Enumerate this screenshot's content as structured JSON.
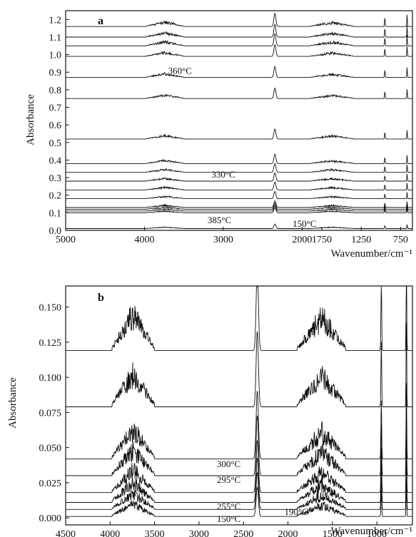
{
  "chart_data": [
    {
      "type": "line",
      "panel": "a",
      "ylabel": "Absorbance",
      "xlabel": "Wavenumber/cm⁻¹",
      "xlim": [
        5000,
        600
      ],
      "ylim": [
        0.0,
        1.25
      ],
      "x_ticks": [
        {
          "v": 5000,
          "label": "5000"
        },
        {
          "v": 4000,
          "label": "4000"
        },
        {
          "v": 3000,
          "label": "3000"
        },
        {
          "v": 2000,
          "label": "2000"
        },
        {
          "v": 1750,
          "label": "1750"
        },
        {
          "v": 1250,
          "label": "1250"
        },
        {
          "v": 750,
          "label": "750"
        }
      ],
      "y_ticks": [
        {
          "v": 0.0,
          "label": "0.0"
        },
        {
          "v": 0.1,
          "label": "0.1"
        },
        {
          "v": 0.2,
          "label": "0.2"
        },
        {
          "v": 0.3,
          "label": "0.3"
        },
        {
          "v": 0.4,
          "label": "0.4"
        },
        {
          "v": 0.5,
          "label": "0.5"
        },
        {
          "v": 0.6,
          "label": "0.6"
        },
        {
          "v": 0.7,
          "label": "0.7"
        },
        {
          "v": 0.8,
          "label": "0.8"
        },
        {
          "v": 0.9,
          "label": "0.9"
        },
        {
          "v": 1.0,
          "label": "1.0"
        },
        {
          "v": 1.1,
          "label": "1.1"
        },
        {
          "v": 1.2,
          "label": "1.2"
        }
      ],
      "baselines": [
        0.01,
        0.1,
        0.11,
        0.12,
        0.13,
        0.18,
        0.23,
        0.28,
        0.33,
        0.38,
        0.52,
        0.75,
        0.87,
        0.99,
        1.05,
        1.1,
        1.16
      ],
      "annotations": [
        {
          "text": "360°C",
          "x": 3700,
          "y": 0.89
        },
        {
          "text": "330°C",
          "x": 3150,
          "y": 0.3
        },
        {
          "text": "385°C",
          "x": 3200,
          "y": 0.04
        },
        {
          "text": "150°C",
          "x": 2120,
          "y": 0.02
        }
      ]
    },
    {
      "type": "line",
      "panel": "b",
      "ylabel": "Absorbance",
      "xlabel": "Wavenumber/cm⁻¹",
      "xlim": [
        4500,
        600
      ],
      "ylim": [
        -0.005,
        0.165
      ],
      "x_ticks": [
        {
          "v": 4500,
          "label": "4500"
        },
        {
          "v": 4000,
          "label": "4000"
        },
        {
          "v": 3500,
          "label": "3500"
        },
        {
          "v": 3000,
          "label": "3000"
        },
        {
          "v": 2500,
          "label": "2500"
        },
        {
          "v": 2000,
          "label": "2000"
        },
        {
          "v": 1500,
          "label": "1500"
        },
        {
          "v": 1000,
          "label": "1000"
        }
      ],
      "y_ticks": [
        {
          "v": 0.0,
          "label": "0.000"
        },
        {
          "v": 0.025,
          "label": "0.025"
        },
        {
          "v": 0.05,
          "label": "0.050"
        },
        {
          "v": 0.075,
          "label": "0.075"
        },
        {
          "v": 0.1,
          "label": "0.100"
        },
        {
          "v": 0.125,
          "label": "0.125"
        },
        {
          "v": 0.15,
          "label": "0.150"
        }
      ],
      "baselines": [
        0.001,
        0.006,
        0.011,
        0.018,
        0.03,
        0.042,
        0.079,
        0.119
      ],
      "annotations": [
        {
          "text": "300°C",
          "x": 2800,
          "y": 0.036
        },
        {
          "text": "295°C",
          "x": 2800,
          "y": 0.025
        },
        {
          "text": "255°C",
          "x": 2800,
          "y": 0.006
        },
        {
          "text": "150°C",
          "x": 2800,
          "y": -0.003
        },
        {
          "text": "190°C",
          "x": 2040,
          "y": 0.002
        }
      ]
    }
  ]
}
